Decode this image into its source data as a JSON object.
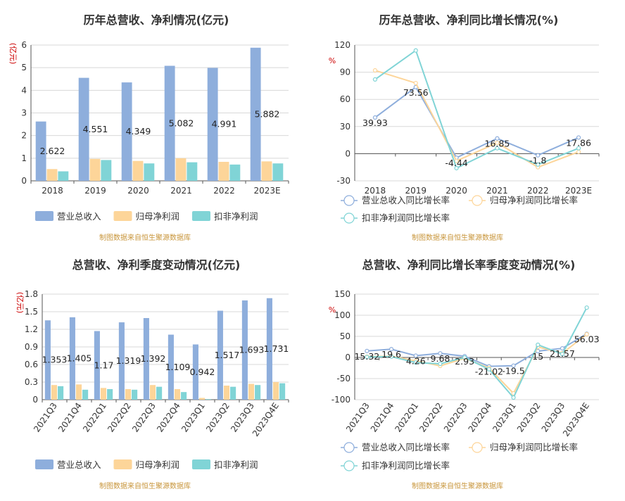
{
  "source_note": "制图数据来自恒生聚源数据库",
  "colors": {
    "revenue": "#8eaedc",
    "net_profit": "#fdd599",
    "deducted": "#80d4d6"
  },
  "chart_data": [
    {
      "id": "annual_values",
      "type": "bar",
      "title": "历年总营收、净利情况(亿元)",
      "ylabel": "(亿元)",
      "categories": [
        "2018",
        "2019",
        "2020",
        "2021",
        "2022",
        "2023E"
      ],
      "ylim": [
        0,
        6
      ],
      "yticks": [
        0,
        1,
        2,
        3,
        4,
        5,
        6
      ],
      "series": [
        {
          "name": "营业总收入",
          "values": [
            2.622,
            4.551,
            4.349,
            5.082,
            4.991,
            5.882
          ],
          "labels": [
            "2.622",
            "4.551",
            "4.349",
            "5.082",
            "4.991",
            "5.882"
          ]
        },
        {
          "name": "归母净利润",
          "values": [
            0.52,
            0.97,
            0.88,
            1.0,
            0.84,
            0.86
          ]
        },
        {
          "name": "扣非净利润",
          "values": [
            0.42,
            0.92,
            0.77,
            0.82,
            0.72,
            0.77
          ]
        }
      ],
      "grid": true,
      "legend": "bottom"
    },
    {
      "id": "annual_growth",
      "type": "line",
      "title": "历年总营收、净利同比增长情况(%)",
      "ylabel": "%",
      "categories": [
        "2018",
        "2019",
        "2020",
        "2021",
        "2022",
        "2023E"
      ],
      "ylim": [
        -30,
        120
      ],
      "yticks": [
        -30,
        0,
        30,
        60,
        90,
        120
      ],
      "series": [
        {
          "name": "营业总收入同比增长率",
          "values": [
            39.93,
            73.56,
            -4.44,
            16.85,
            -1.8,
            17.86
          ],
          "labels": [
            "39.93",
            "73.56",
            "-4.44",
            "16.85",
            "-1.8",
            "17.86"
          ]
        },
        {
          "name": "归母净利润同比增长率",
          "values": [
            92,
            78,
            -8,
            12,
            -15,
            2
          ]
        },
        {
          "name": "扣非净利润同比增长率",
          "values": [
            82,
            114,
            -16,
            6,
            -12,
            6
          ]
        }
      ],
      "grid": true,
      "legend": "bottom"
    },
    {
      "id": "quarterly_values",
      "type": "bar",
      "title": "总营收、净利季度变动情况(亿元)",
      "ylabel": "(亿元)",
      "categories": [
        "2021Q3",
        "2021Q4",
        "2022Q1",
        "2022Q2",
        "2022Q3",
        "2022Q4",
        "2023Q1",
        "2023Q2",
        "2023Q3",
        "2023Q4E"
      ],
      "ylim": [
        0,
        1.8
      ],
      "yticks": [
        "0",
        "0.3",
        "0.6",
        "0.9",
        "1.2",
        "1.5",
        "1.8"
      ],
      "series": [
        {
          "name": "营业总收入",
          "values": [
            1.353,
            1.405,
            1.17,
            1.319,
            1.392,
            1.109,
            0.942,
            1.517,
            1.693,
            1.731
          ],
          "labels": [
            "1.353",
            "1.405",
            "1.17",
            "1.319",
            "1.392",
            "1.109",
            "0.942",
            "1.517",
            "1.693",
            "1.731"
          ]
        },
        {
          "name": "归母净利润",
          "values": [
            0.25,
            0.26,
            0.2,
            0.18,
            0.25,
            0.18,
            0.03,
            0.24,
            0.27,
            0.3
          ]
        },
        {
          "name": "扣非净利润",
          "values": [
            0.23,
            0.17,
            0.18,
            0.17,
            0.22,
            0.13,
            0.01,
            0.22,
            0.25,
            0.28
          ]
        }
      ],
      "grid": true,
      "legend": "bottom"
    },
    {
      "id": "quarterly_growth",
      "type": "line",
      "title": "总营收、净利同比增长率季度变动情况(%)",
      "ylabel": "%",
      "categories": [
        "2021Q3",
        "2021Q4",
        "2022Q1",
        "2022Q2",
        "2022Q3",
        "2022Q4",
        "2023Q1",
        "2023Q2",
        "2023Q3",
        "2023Q4E"
      ],
      "ylim": [
        -100,
        150
      ],
      "yticks": [
        -100,
        -50,
        0,
        50,
        100,
        150
      ],
      "series": [
        {
          "name": "营业总收入同比增长率",
          "values": [
            15.32,
            19.6,
            4.26,
            9.68,
            2.93,
            -21.02,
            -19.5,
            15,
            21.57,
            56.03
          ],
          "labels": [
            "15.32",
            "19.6",
            "4.26",
            "9.68",
            "2.93",
            "-21.02",
            "-19.5",
            "15",
            "21.57",
            "56.03"
          ]
        },
        {
          "name": "归母净利润同比增长率",
          "values": [
            2,
            3,
            -8,
            -20,
            -2,
            -25,
            -85,
            25,
            10,
            55
          ]
        },
        {
          "name": "扣非净利润同比增长率",
          "values": [
            1,
            2,
            -12,
            -15,
            0,
            -28,
            -95,
            30,
            8,
            118
          ]
        }
      ],
      "grid": true,
      "legend": "bottom"
    }
  ]
}
